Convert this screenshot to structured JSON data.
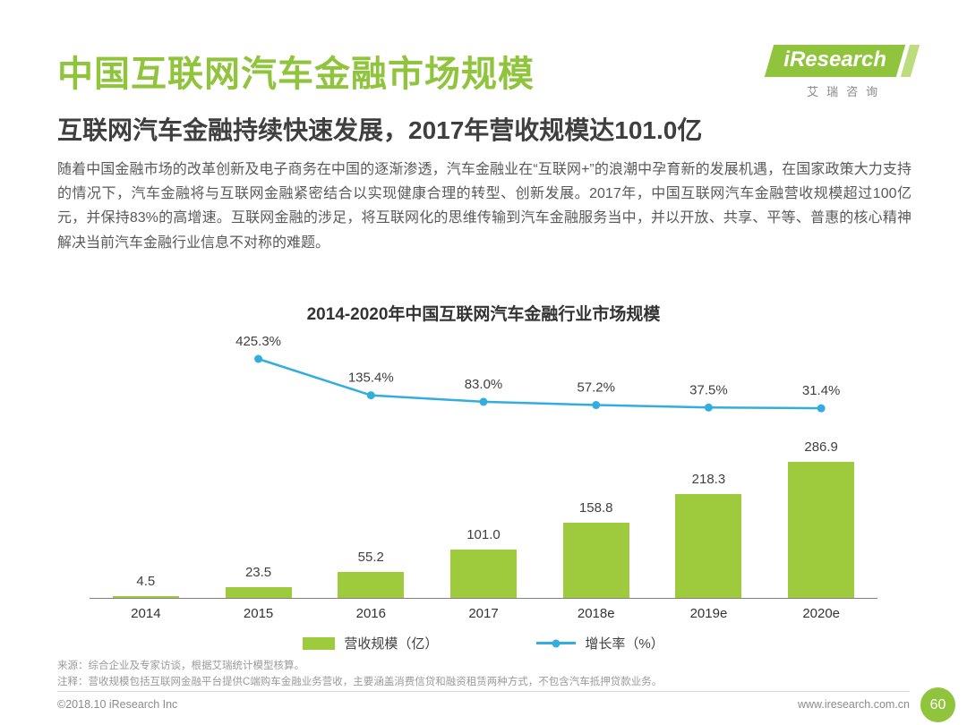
{
  "page": {
    "title": "中国互联网汽车金融市场规模",
    "subtitle": "互联网汽车金融持续快速发展，2017年营收规模达101.0亿",
    "body": "随着中国金融市场的改革创新及电子商务在中国的逐渐渗透，汽车金融业在“互联网+”的浪潮中孕育新的发展机遇，在国家政策大力支持的情况下，汽车金融将与互联网金融紧密结合以实现健康合理的转型、创新发展。2017年，中国互联网汽车金融营收规模超过100亿元，并保持83%的高增速。互联网金融的涉足，将互联网化的思维传输到汽车金融服务当中，并以开放、共享、平等、普惠的核心精神解决当前汽车金融行业信息不对称的难题。"
  },
  "logo": {
    "name": "iResearch",
    "subtext": "艾瑞咨询"
  },
  "colors": {
    "accent_green": "#8fc43c",
    "bar_green": "#9ecb3d",
    "line_blue": "#33ade0"
  },
  "chart_data": {
    "type": "bar",
    "title": "2014-2020年中国互联网汽车金融行业市场规模",
    "categories": [
      "2014",
      "2015",
      "2016",
      "2017",
      "2018e",
      "2019e",
      "2020e"
    ],
    "series": [
      {
        "name": "营收规模（亿）",
        "type": "bar",
        "color": "#9ecb3d",
        "values": [
          4.5,
          23.5,
          55.2,
          101.0,
          158.8,
          218.3,
          286.9
        ],
        "labels": [
          "4.5",
          "23.5",
          "55.2",
          "101.0",
          "158.8",
          "218.3",
          "286.9"
        ]
      },
      {
        "name": "增长率（%）",
        "type": "line",
        "color": "#33ade0",
        "values": [
          null,
          425.3,
          135.4,
          83.0,
          57.2,
          37.5,
          31.4
        ],
        "labels": [
          "",
          "425.3%",
          "135.4%",
          "83.0%",
          "57.2%",
          "37.5%",
          "31.4%"
        ]
      }
    ],
    "legend_position": "bottom",
    "grid": false,
    "ylim": [
      0,
      300
    ]
  },
  "notes": {
    "source": "来源：综合企业及专家访谈，根据艾瑞统计模型核算。",
    "annotation": "注释：营收规模包括互联网金融平台提供C端购车金融业务营收，主要涵盖消费信贷和融资租赁两种方式，不包含汽车抵押贷款业务。"
  },
  "footer": {
    "copyright": "©2018.10 iResearch Inc",
    "website": "www.iresearch.com.cn",
    "page_number": "60"
  }
}
